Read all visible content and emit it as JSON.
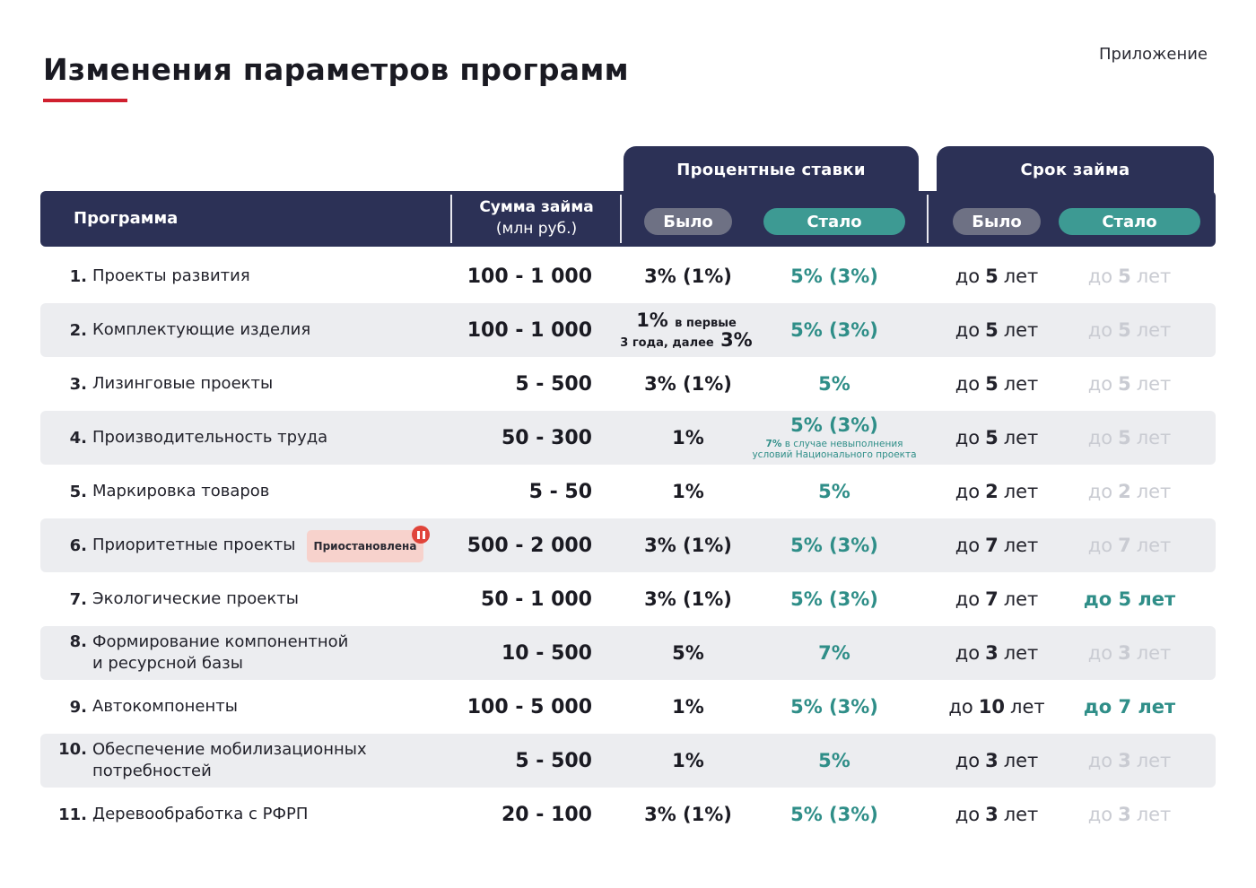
{
  "page": {
    "title": "Изменения параметров программ",
    "appendix": "Приложение"
  },
  "colors": {
    "navy": "#2c3156",
    "accent_red": "#d0202f",
    "teal": "#3d9a93",
    "gray_pill": "#6e7184",
    "row_shade": "#ecedf0",
    "suspended_badge": "#f7d2cc"
  },
  "header": {
    "rates_group": "Процентные ставки",
    "term_group": "Срок займа",
    "program": "Программа",
    "sum_line1": "Сумма займа",
    "sum_line2": "(млн руб.)",
    "was": "Было",
    "now": "Стало"
  },
  "rows": [
    {
      "num": "1.",
      "name": "Проекты развития",
      "sum": "100 - 1 000",
      "rate_was": "3% (1%)",
      "rate_now": "5% (3%)",
      "term_was": "5",
      "term_now": "5"
    },
    {
      "num": "2.",
      "name": "Комплектующие изделия",
      "sum": "100 - 1 000",
      "rate_was_a": "1%",
      "rate_was_b": "в первые",
      "rate_was_c": "3 года, далее",
      "rate_was_d": "3%",
      "rate_now": "5% (3%)",
      "term_was": "5",
      "term_now": "5"
    },
    {
      "num": "3.",
      "name": "Лизинговые проекты",
      "sum": "5 - 500",
      "rate_was": "3% (1%)",
      "rate_now": "5%",
      "term_was": "5",
      "term_now": "5"
    },
    {
      "num": "4.",
      "name": "Производительность труда",
      "sum": "50 - 300",
      "rate_was": "1%",
      "rate_now": "5% (3%)",
      "rate_note_a": "7%",
      "rate_note_b": "в случае невыполнения",
      "rate_note_c": "условий Национального проекта",
      "term_was": "5",
      "term_now": "5"
    },
    {
      "num": "5.",
      "name": "Маркировка товаров",
      "sum": "5 - 50",
      "rate_was": "1%",
      "rate_now": "5%",
      "term_was": "2",
      "term_now": "2"
    },
    {
      "num": "6.",
      "name": "Приоритетные проекты",
      "badge": "Приостановлена",
      "sum": "500 - 2 000",
      "rate_was": "3% (1%)",
      "rate_now": "5% (3%)",
      "term_was": "7",
      "term_now": "7"
    },
    {
      "num": "7.",
      "name": "Экологические проекты",
      "sum": "50 - 1 000",
      "rate_was": "3% (1%)",
      "rate_now": "5% (3%)",
      "term_was": "7",
      "term_now_full": "до 5 лет"
    },
    {
      "num": "8.",
      "name_a": "Формирование компонентной",
      "name_b": "и ресурсной базы",
      "sum": "10 - 500",
      "rate_was": "5%",
      "rate_now": "7%",
      "term_was": "3",
      "term_now": "3"
    },
    {
      "num": "9.",
      "name": "Автокомпоненты",
      "sum": "100 - 5 000",
      "rate_was": "1%",
      "rate_now": "5% (3%)",
      "term_was": "10",
      "term_now_full": "до 7 лет"
    },
    {
      "num": "10.",
      "name_a": "Обеспечение мобилизационных",
      "name_b": "потребностей",
      "sum": "5 - 500",
      "rate_was": "1%",
      "rate_now": "5%",
      "term_was": "3",
      "term_now": "3"
    },
    {
      "num": "11.",
      "name": "Деревообработка с РФРП",
      "sum": "20 - 100",
      "rate_was": "3% (1%)",
      "rate_now": "5% (3%)",
      "term_was": "3",
      "term_now": "3"
    }
  ],
  "term": {
    "prefix": "до",
    "suffix": "лет"
  }
}
